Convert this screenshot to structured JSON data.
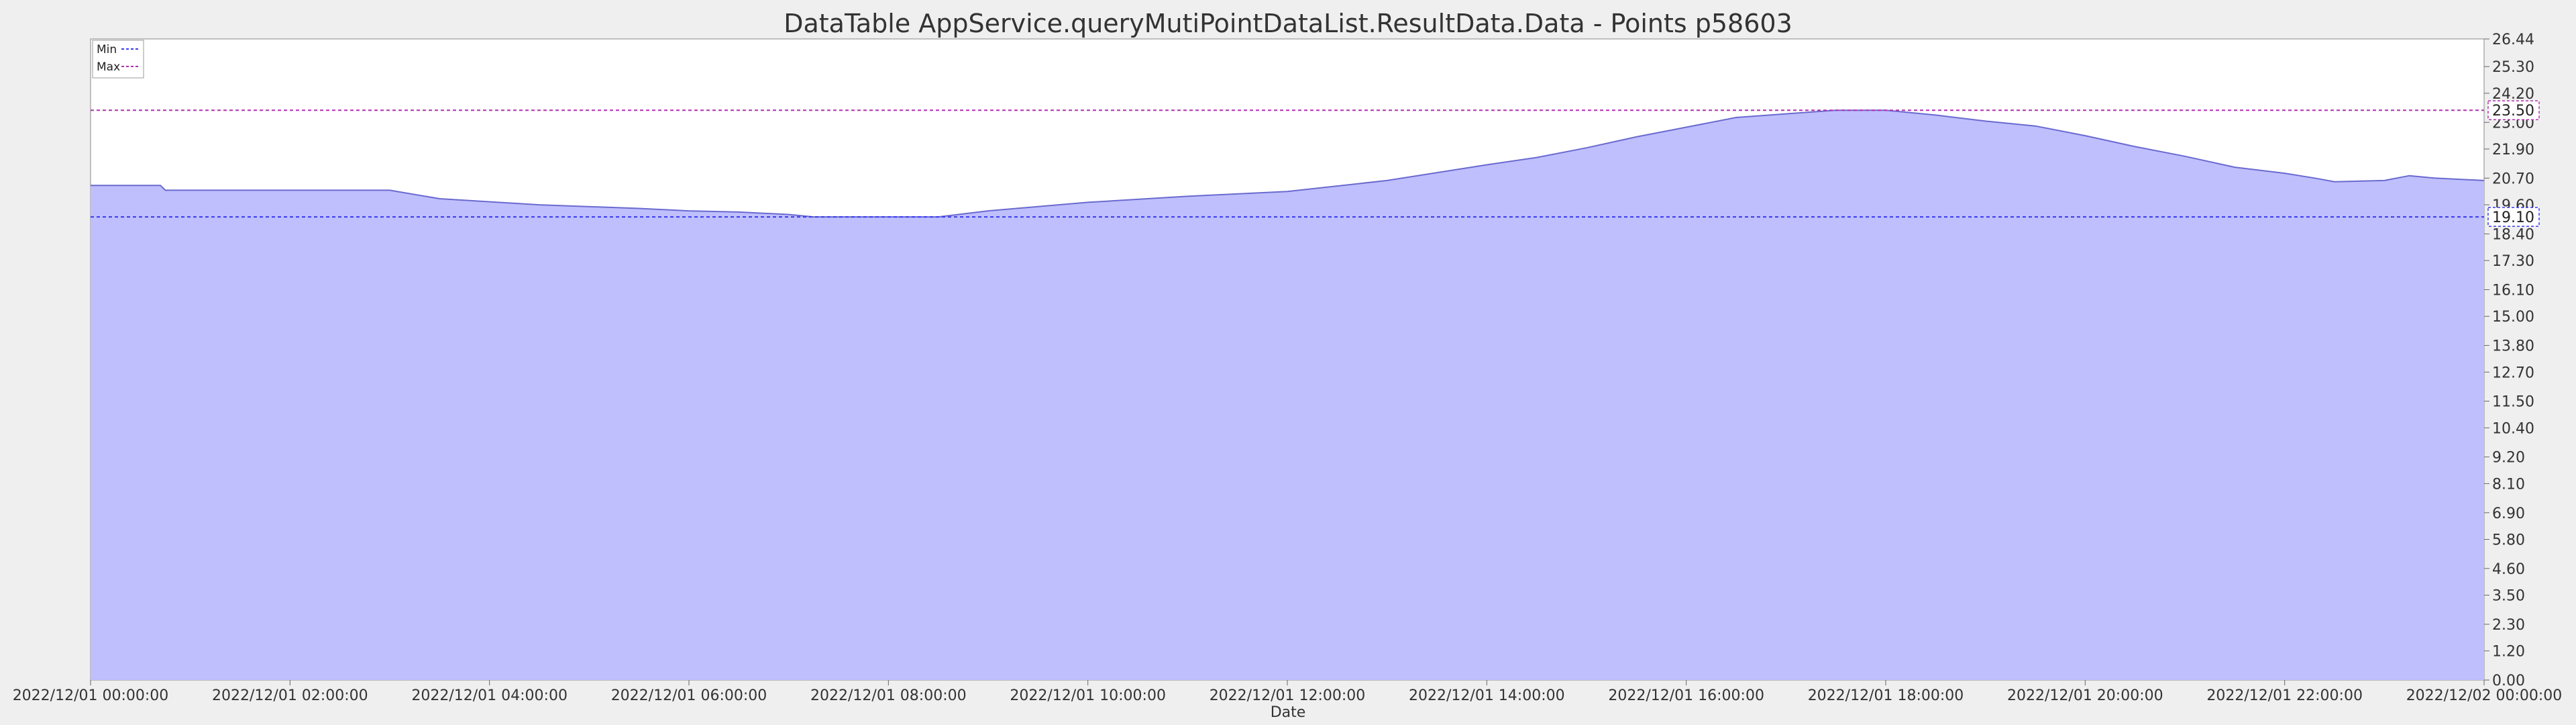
{
  "chart_data": {
    "type": "area",
    "title": "DataTable AppService.queryMutiPointDataList.ResultData.Data - Points p58603",
    "xlabel": "Date",
    "ylabel": "",
    "ylim": [
      0,
      26.44
    ],
    "yticks": [
      "0.00",
      "1.20",
      "2.30",
      "3.50",
      "4.60",
      "5.80",
      "6.90",
      "8.10",
      "9.20",
      "10.40",
      "11.50",
      "12.70",
      "13.80",
      "15.00",
      "16.10",
      "17.30",
      "18.40",
      "19.60",
      "20.70",
      "21.90",
      "23.00",
      "24.20",
      "25.30",
      "26.44"
    ],
    "xticks": [
      "2022/12/01 00:00:00",
      "2022/12/01 02:00:00",
      "2022/12/01 04:00:00",
      "2022/12/01 06:00:00",
      "2022/12/01 08:00:00",
      "2022/12/01 10:00:00",
      "2022/12/01 12:00:00",
      "2022/12/01 14:00:00",
      "2022/12/01 16:00:00",
      "2022/12/01 18:00:00",
      "2022/12/01 20:00:00",
      "2022/12/01 22:00:00",
      "2022/12/02 00:00:00"
    ],
    "x_hours": [
      0,
      0.7,
      0.75,
      3.0,
      3.5,
      4.5,
      5.5,
      6.0,
      6.5,
      7.0,
      7.25,
      8.5,
      9.0,
      10.0,
      11.0,
      12.0,
      13.0,
      14.0,
      14.5,
      15.0,
      15.5,
      16.0,
      16.5,
      17.0,
      17.5,
      18.0,
      18.5,
      19.0,
      19.5,
      20.0,
      20.5,
      21.0,
      21.5,
      22.0,
      22.3,
      22.5,
      23.0,
      23.25,
      23.5,
      24.0
    ],
    "values": [
      20.4,
      20.4,
      20.2,
      20.2,
      19.85,
      19.6,
      19.45,
      19.35,
      19.3,
      19.2,
      19.1,
      19.1,
      19.35,
      19.7,
      19.95,
      20.15,
      20.6,
      21.25,
      21.55,
      21.95,
      22.4,
      22.8,
      23.2,
      23.35,
      23.5,
      23.5,
      23.3,
      23.05,
      22.85,
      22.45,
      22.0,
      21.6,
      21.15,
      20.9,
      20.7,
      20.55,
      20.6,
      20.8,
      20.7,
      20.6
    ],
    "series_name": "p58603",
    "reference_lines": [
      {
        "name": "Min",
        "value": 19.1,
        "label": "19.10",
        "color": "#3a3af0"
      },
      {
        "name": "Max",
        "value": 23.5,
        "label": "23.50",
        "color": "#b030b0"
      }
    ],
    "legend": {
      "position": "top-left",
      "entries": [
        "Min",
        "Max"
      ]
    },
    "fill_color": "#bfbffd",
    "line_color": "#6a6ad0",
    "plot_bg": "#ffffff",
    "grid": false
  }
}
